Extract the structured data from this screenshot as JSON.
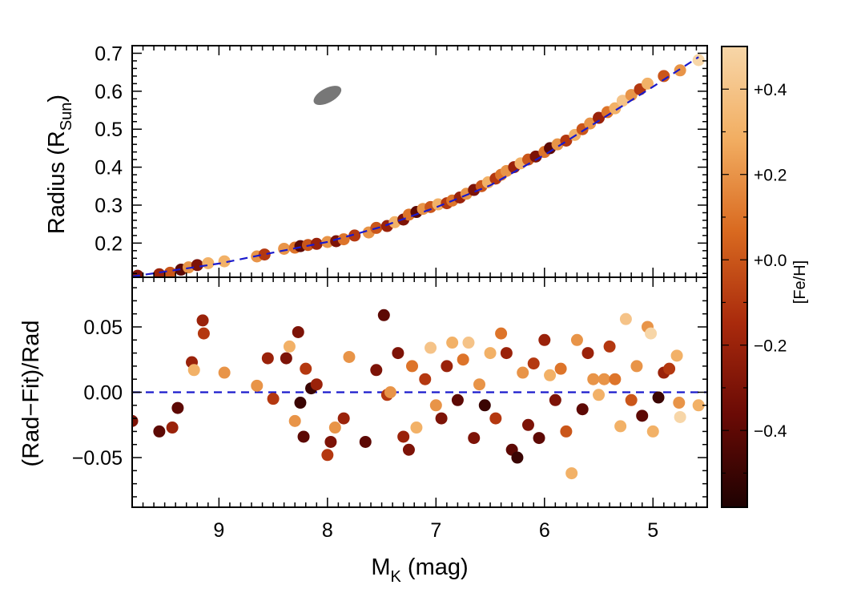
{
  "chart_data": [
    {
      "type": "scatter",
      "panel": "top",
      "ylabel": "Radius (R",
      "ylabel_sub": "Sun",
      "ylabel_close": ")",
      "xlim": [
        9.8,
        4.5
      ],
      "ylim": [
        0.11,
        0.72
      ],
      "yticks": [
        0.2,
        0.3,
        0.4,
        0.5,
        0.6,
        0.7
      ],
      "ytick_labels": [
        "0.2",
        "0.3",
        "0.4",
        "0.5",
        "0.6",
        "0.7"
      ],
      "error_ellipse": {
        "x": 8.0,
        "y": 0.589,
        "color": "#777777"
      },
      "fit_line": {
        "style": "dashed",
        "color": "#1a1acc"
      },
      "points": [
        {
          "x": 9.75,
          "y": 0.114,
          "feh": -0.3
        },
        {
          "x": 9.55,
          "y": 0.118,
          "feh": -0.2
        },
        {
          "x": 9.45,
          "y": 0.122,
          "feh": 0.0
        },
        {
          "x": 9.35,
          "y": 0.13,
          "feh": -0.4
        },
        {
          "x": 9.28,
          "y": 0.136,
          "feh": 0.2
        },
        {
          "x": 9.2,
          "y": 0.142,
          "feh": -0.3
        },
        {
          "x": 9.1,
          "y": 0.147,
          "feh": 0.3
        },
        {
          "x": 8.95,
          "y": 0.152,
          "feh": 0.3
        },
        {
          "x": 8.65,
          "y": 0.165,
          "feh": 0.2
        },
        {
          "x": 8.58,
          "y": 0.17,
          "feh": -0.1
        },
        {
          "x": 8.4,
          "y": 0.185,
          "feh": 0.2
        },
        {
          "x": 8.3,
          "y": 0.188,
          "feh": 0.1
        },
        {
          "x": 8.25,
          "y": 0.192,
          "feh": -0.4
        },
        {
          "x": 8.18,
          "y": 0.195,
          "feh": 0.0
        },
        {
          "x": 8.1,
          "y": 0.198,
          "feh": -0.2
        },
        {
          "x": 8.0,
          "y": 0.203,
          "feh": 0.2
        },
        {
          "x": 7.92,
          "y": 0.205,
          "feh": -0.3
        },
        {
          "x": 7.85,
          "y": 0.21,
          "feh": 0.1
        },
        {
          "x": 7.75,
          "y": 0.22,
          "feh": -0.1
        },
        {
          "x": 7.62,
          "y": 0.228,
          "feh": 0.2
        },
        {
          "x": 7.55,
          "y": 0.24,
          "feh": 0.0
        },
        {
          "x": 7.45,
          "y": 0.245,
          "feh": -0.2
        },
        {
          "x": 7.38,
          "y": 0.255,
          "feh": 0.3
        },
        {
          "x": 7.3,
          "y": 0.262,
          "feh": -0.3
        },
        {
          "x": 7.25,
          "y": 0.275,
          "feh": 0.1
        },
        {
          "x": 7.18,
          "y": 0.282,
          "feh": -0.4
        },
        {
          "x": 7.12,
          "y": 0.29,
          "feh": 0.2
        },
        {
          "x": 7.05,
          "y": 0.295,
          "feh": 0.0
        },
        {
          "x": 6.98,
          "y": 0.302,
          "feh": 0.3
        },
        {
          "x": 6.9,
          "y": 0.305,
          "feh": -0.1
        },
        {
          "x": 6.85,
          "y": 0.312,
          "feh": 0.1
        },
        {
          "x": 6.78,
          "y": 0.32,
          "feh": -0.2
        },
        {
          "x": 6.72,
          "y": 0.33,
          "feh": 0.2
        },
        {
          "x": 6.65,
          "y": 0.34,
          "feh": -0.3
        },
        {
          "x": 6.58,
          "y": 0.35,
          "feh": 0.0
        },
        {
          "x": 6.52,
          "y": 0.36,
          "feh": 0.3
        },
        {
          "x": 6.45,
          "y": 0.37,
          "feh": -0.1
        },
        {
          "x": 6.4,
          "y": 0.38,
          "feh": 0.1
        },
        {
          "x": 6.35,
          "y": 0.39,
          "feh": 0.2
        },
        {
          "x": 6.28,
          "y": 0.4,
          "feh": -0.2
        },
        {
          "x": 6.22,
          "y": 0.41,
          "feh": 0.3
        },
        {
          "x": 6.15,
          "y": 0.42,
          "feh": 0.0
        },
        {
          "x": 6.08,
          "y": 0.428,
          "feh": -0.3
        },
        {
          "x": 6.0,
          "y": 0.44,
          "feh": 0.1
        },
        {
          "x": 5.95,
          "y": 0.45,
          "feh": -0.4
        },
        {
          "x": 5.88,
          "y": 0.46,
          "feh": 0.2
        },
        {
          "x": 5.8,
          "y": 0.47,
          "feh": -0.1
        },
        {
          "x": 5.72,
          "y": 0.485,
          "feh": 0.3
        },
        {
          "x": 5.65,
          "y": 0.5,
          "feh": 0.0
        },
        {
          "x": 5.58,
          "y": 0.515,
          "feh": 0.2
        },
        {
          "x": 5.5,
          "y": 0.53,
          "feh": -0.2
        },
        {
          "x": 5.42,
          "y": 0.545,
          "feh": 0.1
        },
        {
          "x": 5.35,
          "y": 0.555,
          "feh": 0.3
        },
        {
          "x": 5.28,
          "y": 0.575,
          "feh": 0.4
        },
        {
          "x": 5.2,
          "y": 0.59,
          "feh": 0.2
        },
        {
          "x": 5.12,
          "y": 0.605,
          "feh": -0.1
        },
        {
          "x": 5.05,
          "y": 0.62,
          "feh": 0.3
        },
        {
          "x": 4.9,
          "y": 0.64,
          "feh": 0.0
        },
        {
          "x": 4.75,
          "y": 0.655,
          "feh": 0.2
        },
        {
          "x": 4.58,
          "y": 0.682,
          "feh": 0.5
        }
      ]
    },
    {
      "type": "scatter",
      "panel": "bottom",
      "ylabel": "(Rad−Fit)/Rad",
      "xlabel": "M",
      "xlabel_sub": "K",
      "xlabel_unit": " (mag)",
      "xlim": [
        9.8,
        4.5
      ],
      "ylim": [
        -0.088,
        0.088
      ],
      "xticks": [
        9,
        8,
        7,
        6,
        5
      ],
      "xtick_labels": [
        "9",
        "8",
        "7",
        "6",
        "5"
      ],
      "yticks": [
        -0.05,
        0.0,
        0.05
      ],
      "ytick_labels": [
        "−0.05",
        "0.00",
        "0.05"
      ],
      "zero_line": {
        "style": "dashed",
        "color": "#1a1acc"
      },
      "points": [
        {
          "x": 9.8,
          "y": -0.022,
          "feh": -0.3
        },
        {
          "x": 9.55,
          "y": -0.03,
          "feh": -0.4
        },
        {
          "x": 9.43,
          "y": -0.027,
          "feh": -0.2
        },
        {
          "x": 9.38,
          "y": -0.012,
          "feh": -0.4
        },
        {
          "x": 9.25,
          "y": 0.023,
          "feh": -0.2
        },
        {
          "x": 9.23,
          "y": 0.017,
          "feh": 0.3
        },
        {
          "x": 9.15,
          "y": 0.055,
          "feh": -0.2
        },
        {
          "x": 9.14,
          "y": 0.045,
          "feh": -0.1
        },
        {
          "x": 8.95,
          "y": 0.015,
          "feh": 0.2
        },
        {
          "x": 8.65,
          "y": 0.005,
          "feh": 0.2
        },
        {
          "x": 8.55,
          "y": 0.026,
          "feh": -0.2
        },
        {
          "x": 8.5,
          "y": -0.005,
          "feh": -0.1
        },
        {
          "x": 8.38,
          "y": 0.026,
          "feh": -0.3
        },
        {
          "x": 8.35,
          "y": 0.035,
          "feh": 0.3
        },
        {
          "x": 8.3,
          "y": -0.022,
          "feh": 0.2
        },
        {
          "x": 8.27,
          "y": 0.046,
          "feh": -0.3
        },
        {
          "x": 8.25,
          "y": -0.008,
          "feh": -0.5
        },
        {
          "x": 8.22,
          "y": -0.034,
          "feh": -0.4
        },
        {
          "x": 8.2,
          "y": 0.018,
          "feh": -0.1
        },
        {
          "x": 8.15,
          "y": 0.003,
          "feh": -0.5
        },
        {
          "x": 8.1,
          "y": 0.006,
          "feh": -0.2
        },
        {
          "x": 8.0,
          "y": -0.048,
          "feh": -0.1
        },
        {
          "x": 7.97,
          "y": -0.038,
          "feh": -0.3
        },
        {
          "x": 7.93,
          "y": -0.027,
          "feh": 0.2
        },
        {
          "x": 7.85,
          "y": -0.02,
          "feh": -0.2
        },
        {
          "x": 7.8,
          "y": 0.027,
          "feh": 0.2
        },
        {
          "x": 7.65,
          "y": -0.038,
          "feh": -0.4
        },
        {
          "x": 7.55,
          "y": 0.017,
          "feh": -0.3
        },
        {
          "x": 7.48,
          "y": 0.059,
          "feh": -0.4
        },
        {
          "x": 7.45,
          "y": -0.002,
          "feh": -0.1
        },
        {
          "x": 7.42,
          "y": 0.0,
          "feh": 0.2
        },
        {
          "x": 7.35,
          "y": 0.03,
          "feh": -0.3
        },
        {
          "x": 7.3,
          "y": -0.034,
          "feh": -0.2
        },
        {
          "x": 7.25,
          "y": -0.044,
          "feh": -0.3
        },
        {
          "x": 7.22,
          "y": 0.02,
          "feh": 0.1
        },
        {
          "x": 7.18,
          "y": -0.027,
          "feh": 0.3
        },
        {
          "x": 7.1,
          "y": 0.01,
          "feh": -0.1
        },
        {
          "x": 7.05,
          "y": 0.034,
          "feh": 0.4
        },
        {
          "x": 7.0,
          "y": -0.01,
          "feh": 0.2
        },
        {
          "x": 6.95,
          "y": -0.02,
          "feh": -0.3
        },
        {
          "x": 6.9,
          "y": 0.02,
          "feh": -0.2
        },
        {
          "x": 6.85,
          "y": 0.038,
          "feh": 0.3
        },
        {
          "x": 6.8,
          "y": -0.006,
          "feh": -0.4
        },
        {
          "x": 6.75,
          "y": 0.025,
          "feh": 0.1
        },
        {
          "x": 6.7,
          "y": 0.038,
          "feh": 0.4
        },
        {
          "x": 6.65,
          "y": -0.035,
          "feh": -0.3
        },
        {
          "x": 6.6,
          "y": 0.006,
          "feh": 0.2
        },
        {
          "x": 6.55,
          "y": -0.01,
          "feh": -0.5
        },
        {
          "x": 6.5,
          "y": 0.03,
          "feh": 0.3
        },
        {
          "x": 6.45,
          "y": -0.02,
          "feh": -0.1
        },
        {
          "x": 6.4,
          "y": 0.045,
          "feh": 0.1
        },
        {
          "x": 6.35,
          "y": 0.03,
          "feh": -0.2
        },
        {
          "x": 6.3,
          "y": -0.044,
          "feh": -0.4
        },
        {
          "x": 6.25,
          "y": -0.05,
          "feh": -0.5
        },
        {
          "x": 6.2,
          "y": 0.015,
          "feh": 0.2
        },
        {
          "x": 6.15,
          "y": -0.025,
          "feh": -0.3
        },
        {
          "x": 6.1,
          "y": 0.022,
          "feh": -0.1
        },
        {
          "x": 6.05,
          "y": -0.035,
          "feh": -0.4
        },
        {
          "x": 6.0,
          "y": 0.04,
          "feh": -0.2
        },
        {
          "x": 5.95,
          "y": 0.013,
          "feh": 0.3
        },
        {
          "x": 5.9,
          "y": -0.006,
          "feh": -0.3
        },
        {
          "x": 5.85,
          "y": 0.018,
          "feh": 0.1
        },
        {
          "x": 5.8,
          "y": -0.03,
          "feh": 0.0
        },
        {
          "x": 5.75,
          "y": -0.062,
          "feh": 0.3
        },
        {
          "x": 5.7,
          "y": 0.04,
          "feh": 0.2
        },
        {
          "x": 5.65,
          "y": -0.013,
          "feh": -0.4
        },
        {
          "x": 5.6,
          "y": 0.03,
          "feh": -0.2
        },
        {
          "x": 5.55,
          "y": 0.01,
          "feh": 0.2
        },
        {
          "x": 5.5,
          "y": -0.002,
          "feh": 0.3
        },
        {
          "x": 5.45,
          "y": 0.01,
          "feh": 0.2
        },
        {
          "x": 5.4,
          "y": 0.035,
          "feh": -0.1
        },
        {
          "x": 5.35,
          "y": 0.01,
          "feh": 0.1
        },
        {
          "x": 5.3,
          "y": -0.026,
          "feh": 0.3
        },
        {
          "x": 5.25,
          "y": 0.056,
          "feh": 0.4
        },
        {
          "x": 5.2,
          "y": -0.006,
          "feh": 0.0
        },
        {
          "x": 5.15,
          "y": 0.02,
          "feh": 0.2
        },
        {
          "x": 5.1,
          "y": -0.018,
          "feh": -0.4
        },
        {
          "x": 5.05,
          "y": 0.05,
          "feh": 0.2
        },
        {
          "x": 5.02,
          "y": 0.045,
          "feh": 0.5
        },
        {
          "x": 5.0,
          "y": -0.03,
          "feh": 0.3
        },
        {
          "x": 4.95,
          "y": -0.004,
          "feh": -0.5
        },
        {
          "x": 4.9,
          "y": 0.015,
          "feh": -0.2
        },
        {
          "x": 4.85,
          "y": 0.018,
          "feh": -0.1
        },
        {
          "x": 4.78,
          "y": 0.028,
          "feh": 0.3
        },
        {
          "x": 4.76,
          "y": -0.008,
          "feh": 0.2
        },
        {
          "x": 4.75,
          "y": -0.019,
          "feh": 0.5
        },
        {
          "x": 4.58,
          "y": -0.01,
          "feh": 0.3
        }
      ]
    }
  ],
  "colorbar": {
    "title": "[Fe/H]",
    "range": [
      -0.58,
      0.5
    ],
    "ticks": [
      -0.4,
      -0.2,
      0.0,
      0.2,
      0.4
    ],
    "tick_labels": [
      "−0.4",
      "−0.2",
      "+0.0",
      "+0.2",
      "+0.4"
    ],
    "colors": [
      "#1e0202",
      "#6a0a05",
      "#a92a0c",
      "#d96a20",
      "#f2ae62",
      "#f7d6a8"
    ]
  }
}
